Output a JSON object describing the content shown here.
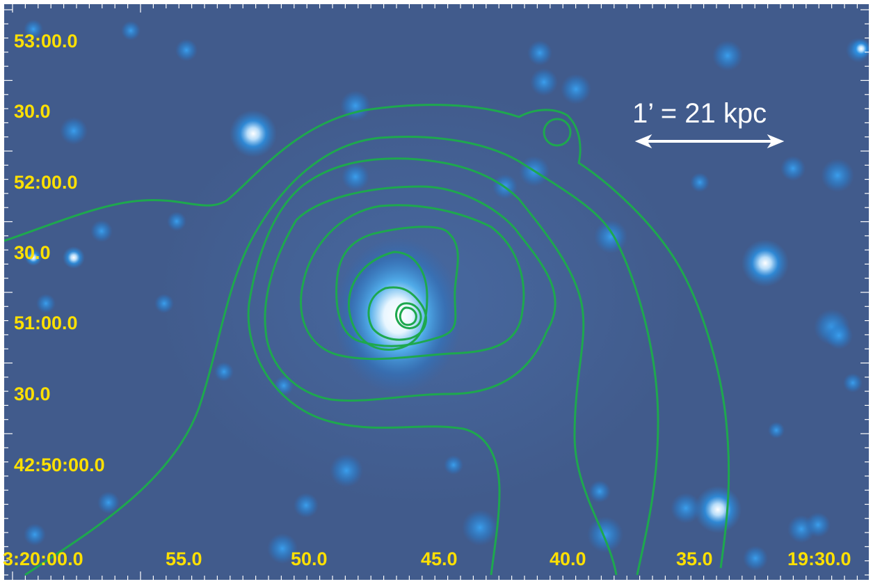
{
  "image": {
    "description_colors": {
      "background": "#3f5b8f",
      "star_core": "#ffffff",
      "star_glow": "#1e8ee0",
      "contour": "#1ea84e",
      "label_color": "#ffe000",
      "scale_color": "#ffffff"
    }
  },
  "dec_labels": [
    "53:00.0",
    "30.0",
    "52:00.0",
    "30.0",
    "51:00.0",
    "30.0",
    "42:50:00.0"
  ],
  "ra_labels": [
    "3:20:00.0",
    "55.0",
    "50.0",
    "45.0",
    "40.0",
    "35.0",
    "19:30.0"
  ],
  "scale_bar": {
    "label": "1’ = 21 kpc"
  }
}
